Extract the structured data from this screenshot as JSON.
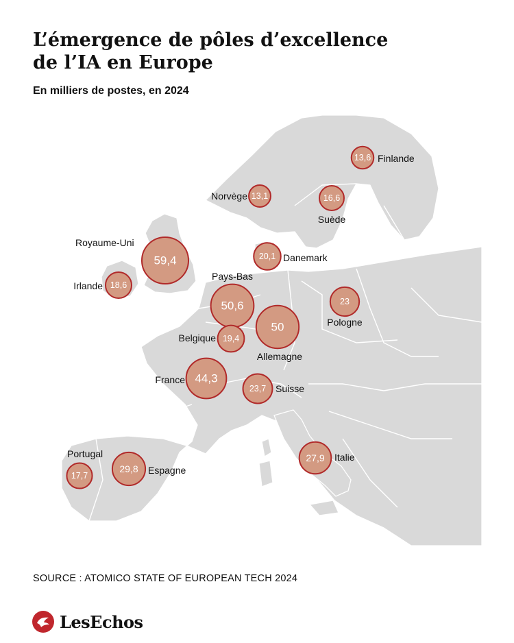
{
  "title_line1": "L’émergence de pôles d’excellence",
  "title_line2": "de l’IA en Europe",
  "subtitle": "En milliers de postes, en 2024",
  "source": "SOURCE : ATOMICO STATE OF EUROPEAN TECH 2024",
  "brand": "LesEchos",
  "colors": {
    "bubble_fill": "#d39a82",
    "bubble_stroke": "#b12a2a",
    "land": "#d9d9d9",
    "sea": "#ffffff"
  },
  "countries": [
    {
      "name": "Royaume-Uni",
      "value": "59,4"
    },
    {
      "name": "Pays-Bas",
      "value": "50,6"
    },
    {
      "name": "Allemagne",
      "value": "50"
    },
    {
      "name": "France",
      "value": "44,3"
    },
    {
      "name": "Espagne",
      "value": "29,8"
    },
    {
      "name": "Italie",
      "value": "27,9"
    },
    {
      "name": "Suisse",
      "value": "23,7"
    },
    {
      "name": "Pologne",
      "value": "23"
    },
    {
      "name": "Danemark",
      "value": "20,1"
    },
    {
      "name": "Belgique",
      "value": "19,4"
    },
    {
      "name": "Irlande",
      "value": "18,6"
    },
    {
      "name": "Portugal",
      "value": "17,7"
    },
    {
      "name": "Suède",
      "value": "16,6"
    },
    {
      "name": "Finlande",
      "value": "13,6"
    },
    {
      "name": "Norvège",
      "value": "13,1"
    }
  ]
}
